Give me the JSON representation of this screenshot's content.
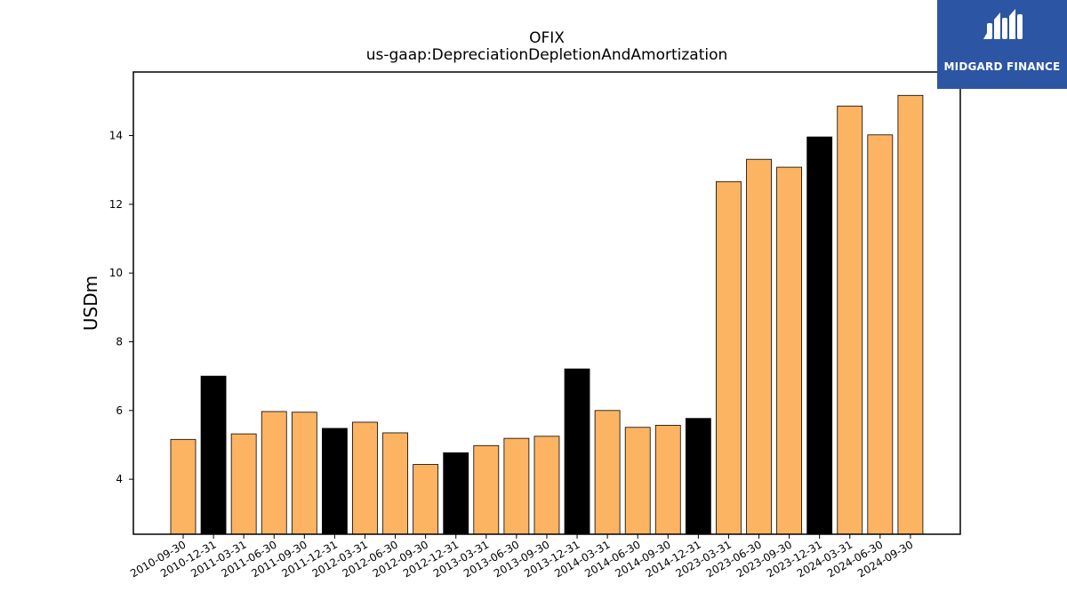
{
  "brand": {
    "name": "MIDGARD FINANCE",
    "logo_icon": "midgard-m-logo-icon",
    "background_color": "#2c55a4"
  },
  "chart_data": {
    "type": "bar",
    "title": "OFIX",
    "subtitle": "us-gaap:DepreciationDepletionAndAmortization",
    "xlabel": "",
    "ylabel": "USDm",
    "ylim": [
      2.4,
      15.85
    ],
    "yticks": [
      4,
      6,
      8,
      10,
      12,
      14
    ],
    "grid": false,
    "colors": {
      "quarter": "#fdb462",
      "annual": "#000000",
      "edge": "#000000"
    },
    "categories": [
      "2010-09-30",
      "2010-12-31",
      "2011-03-31",
      "2011-06-30",
      "2011-09-30",
      "2011-12-31",
      "2012-03-31",
      "2012-06-30",
      "2012-09-30",
      "2012-12-31",
      "2013-03-31",
      "2013-06-30",
      "2013-09-30",
      "2013-12-31",
      "2014-03-31",
      "2014-06-30",
      "2014-09-30",
      "2014-12-31",
      "2023-03-31",
      "2023-06-30",
      "2023-09-30",
      "2023-12-31",
      "2024-03-31",
      "2024-06-30",
      "2024-09-30"
    ],
    "values": [
      5.16,
      7.0,
      5.32,
      5.97,
      5.95,
      5.48,
      5.66,
      5.35,
      4.43,
      4.77,
      4.98,
      5.19,
      5.25,
      7.21,
      6.0,
      5.51,
      5.57,
      5.77,
      12.66,
      13.31,
      13.08,
      13.96,
      14.86,
      14.02,
      15.17
    ],
    "bar_kind": [
      "quarter",
      "annual",
      "quarter",
      "quarter",
      "quarter",
      "annual",
      "quarter",
      "quarter",
      "quarter",
      "annual",
      "quarter",
      "quarter",
      "quarter",
      "annual",
      "quarter",
      "quarter",
      "quarter",
      "annual",
      "quarter",
      "quarter",
      "quarter",
      "annual",
      "quarter",
      "quarter",
      "quarter"
    ]
  }
}
